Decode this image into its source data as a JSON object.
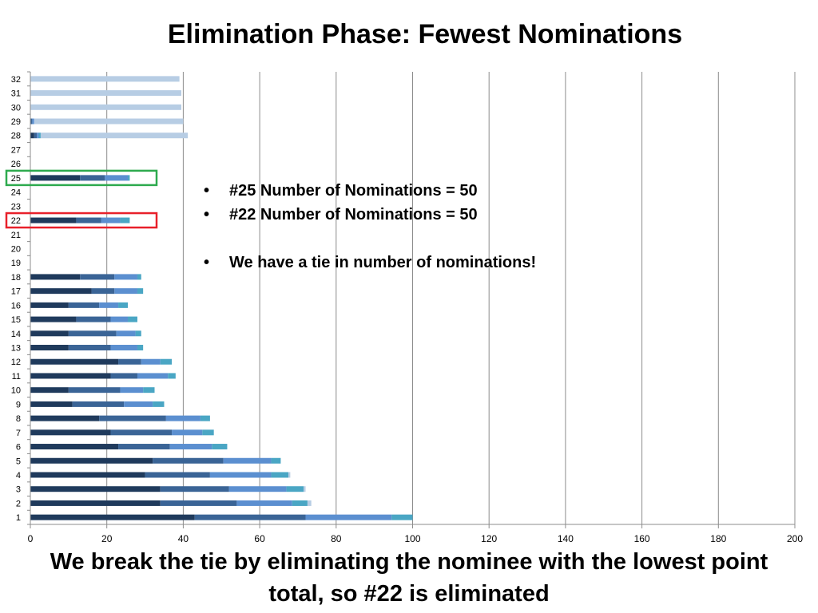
{
  "slide": {
    "title": "Elimination Phase: Fewest Nominations",
    "bullets": [
      "#25 Number of Nominations = 50",
      "#22 Number of Nominations = 50",
      "We have a tie in number of nominations!"
    ],
    "footer": "We break the tie by eliminating the nominee with the lowest point total, so #22 is eliminated"
  },
  "chart_data": {
    "type": "bar",
    "orientation": "horizontal",
    "stacked": true,
    "categories": [
      "1",
      "2",
      "3",
      "4",
      "5",
      "6",
      "7",
      "8",
      "9",
      "10",
      "11",
      "12",
      "13",
      "14",
      "15",
      "16",
      "17",
      "18",
      "19",
      "20",
      "21",
      "22",
      "23",
      "24",
      "25",
      "26",
      "27",
      "28",
      "29",
      "30",
      "31",
      "32"
    ],
    "xlim": [
      0,
      200
    ],
    "xticks": [
      0,
      20,
      40,
      60,
      80,
      100,
      120,
      140,
      160,
      180,
      200
    ],
    "grid": true,
    "colors": [
      "#1f3a5c",
      "#3a6496",
      "#5b8fd0",
      "#4aa6c4",
      "#b7cde4"
    ],
    "series": [
      {
        "values": [
          43,
          34,
          34,
          30,
          32,
          23,
          21,
          18,
          11,
          10,
          21,
          23,
          10,
          10,
          12,
          10,
          16,
          13,
          0,
          0,
          0,
          12,
          0,
          0,
          13,
          0,
          0,
          1,
          0,
          0,
          0,
          0
        ]
      },
      {
        "values": [
          29,
          20,
          18,
          17,
          18.5,
          13.5,
          16,
          17.5,
          13.5,
          13.5,
          7,
          6,
          11,
          12.5,
          9,
          8,
          6,
          9,
          0,
          0,
          0,
          6.5,
          0,
          0,
          6.5,
          0,
          0,
          0.7,
          0.5,
          0,
          0,
          0
        ]
      },
      {
        "values": [
          22.5,
          14.5,
          15,
          16,
          12.5,
          11,
          8,
          9,
          7.5,
          6,
          8,
          5,
          7,
          5,
          4.5,
          5,
          6,
          6,
          0,
          0,
          0,
          5,
          0,
          0,
          6,
          0,
          0,
          0.5,
          0.5,
          0,
          0,
          0
        ]
      },
      {
        "values": [
          5.5,
          4,
          4.5,
          4.5,
          2.5,
          4,
          3,
          2.5,
          3,
          3,
          2,
          3,
          1.5,
          1.5,
          2.5,
          2.5,
          1.5,
          1,
          0,
          0,
          0,
          2.5,
          0,
          0,
          0.5,
          0,
          0,
          0.5,
          0,
          0,
          0,
          0
        ]
      },
      {
        "values": [
          0,
          1,
          0.5,
          0.5,
          0,
          0,
          0,
          0,
          0,
          0,
          0,
          0,
          0,
          0,
          0,
          0,
          0,
          0,
          0,
          0,
          0,
          0,
          0,
          0,
          0,
          0,
          0,
          38.5,
          39,
          39.5,
          39.5,
          39
        ]
      }
    ],
    "highlights": [
      {
        "category": "25",
        "color": "#2eaa4e"
      },
      {
        "category": "22",
        "color": "#e8202a"
      }
    ]
  }
}
